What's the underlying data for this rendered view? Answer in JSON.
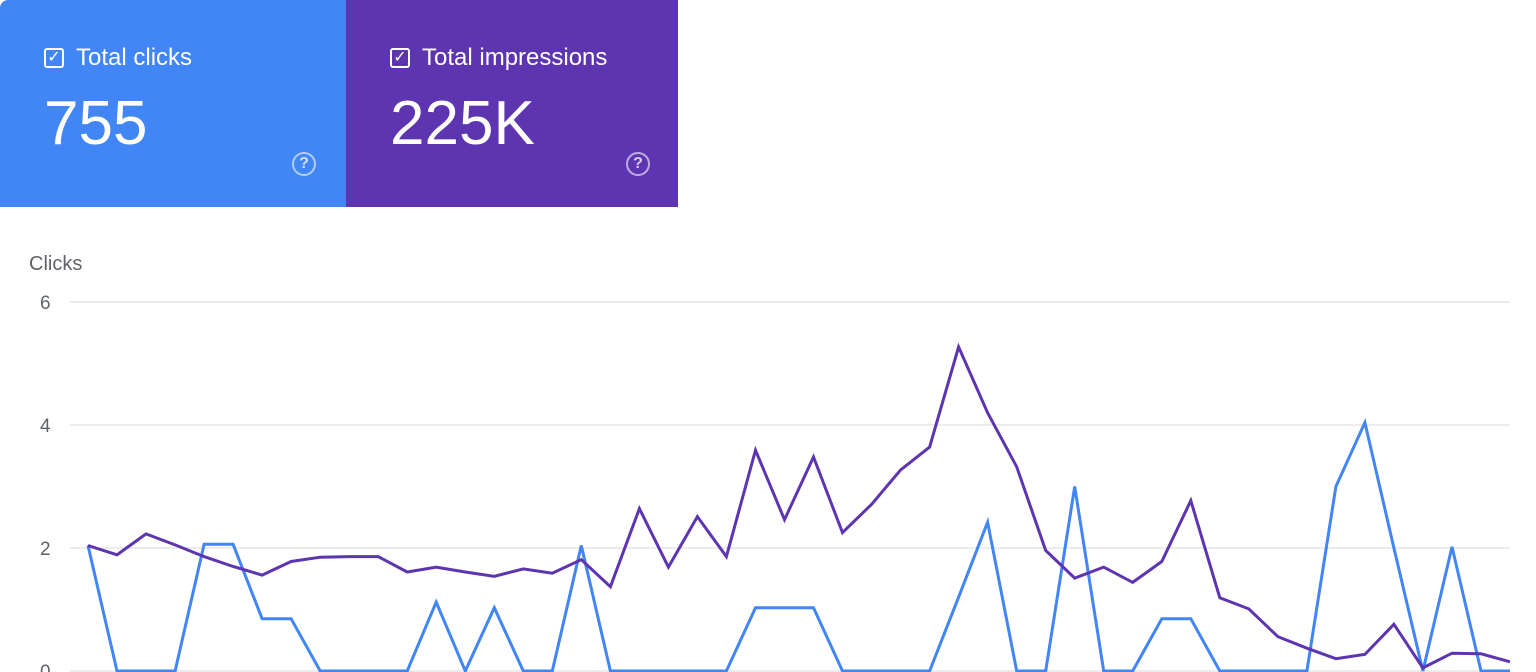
{
  "cards": [
    {
      "label": "Total clicks",
      "value": "755",
      "color": "#4285f4",
      "checked": true,
      "icon": "checkbox-checked-icon",
      "help_icon": "help-circle-icon"
    },
    {
      "label": "Total impressions",
      "value": "225K",
      "color": "#5e35b1",
      "checked": true,
      "icon": "checkbox-checked-icon",
      "help_icon": "help-circle-icon"
    }
  ],
  "chart_data": {
    "type": "line",
    "title": "",
    "xlabel": "",
    "ylabel": "Clicks",
    "ylim": [
      0,
      6
    ],
    "yticks": [
      "6",
      "4",
      "2",
      "0"
    ],
    "grid": true,
    "legend": "none",
    "series": [
      {
        "color": "#4285f4",
        "values": [
          2.04,
          0,
          0,
          0,
          2.06,
          2.06,
          0.85,
          0.85,
          0,
          0,
          0,
          0,
          1.12,
          0,
          1.03,
          0,
          0,
          2.04,
          0,
          0,
          0,
          0,
          0,
          1.03,
          1.03,
          1.03,
          0,
          0,
          0,
          0,
          1.2,
          2.42,
          0,
          0,
          3.0,
          0,
          0,
          0.85,
          0.85,
          0,
          0,
          0,
          0,
          3.0,
          4.04,
          2.0,
          0,
          2.02,
          0,
          0
        ]
      },
      {
        "color": "#5e35b1",
        "values": [
          2.04,
          1.89,
          2.23,
          2.05,
          1.86,
          1.7,
          1.56,
          1.78,
          1.85,
          1.86,
          1.86,
          1.61,
          1.69,
          1.61,
          1.54,
          1.66,
          1.59,
          1.81,
          1.37,
          2.64,
          1.69,
          2.51,
          1.86,
          3.59,
          2.46,
          3.48,
          2.25,
          2.71,
          3.27,
          3.64,
          5.27,
          4.2,
          3.32,
          1.96,
          1.51,
          1.69,
          1.44,
          1.78,
          2.77,
          1.19,
          1.01,
          0.56,
          0.37,
          0.2,
          0.27,
          0.76,
          0.05,
          0.29,
          0.28,
          0.15
        ]
      }
    ]
  }
}
